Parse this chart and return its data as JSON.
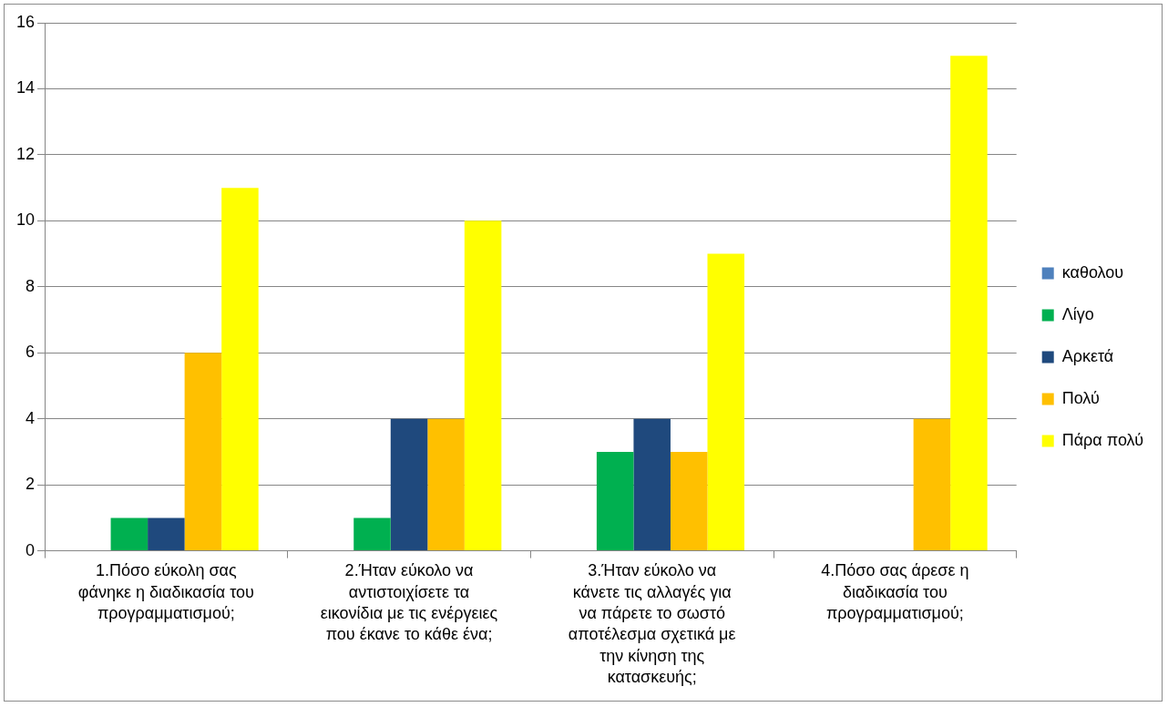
{
  "chart_data": {
    "type": "bar",
    "categories": [
      "1.Πόσο εύκολη σας φάνηκε η διαδικασία του προγραμματισμού;",
      "2.Ήταν εύκολο να αντιστοιχίσετε τα εικονίδια με τις ενέργειες που έκανε το κάθε ένα;",
      "3.Ήταν εύκολο να κάνετε τις αλλαγές για να πάρετε το σωστό αποτέλεσμα σχετικά με την κίνηση της κατασκευής;",
      "4.Πόσο σας άρεσε η διαδικασία του προγραμματισμού;"
    ],
    "series": [
      {
        "name": "καθολου",
        "color": "#4f81bd",
        "values": [
          0,
          0,
          0,
          0
        ]
      },
      {
        "name": "Λίγο",
        "color": "#00b050",
        "values": [
          1,
          1,
          3,
          0
        ]
      },
      {
        "name": "Αρκετά",
        "color": "#1f497d",
        "values": [
          1,
          4,
          4,
          0
        ]
      },
      {
        "name": "Πολύ",
        "color": "#ffc000",
        "values": [
          6,
          4,
          3,
          4
        ]
      },
      {
        "name": "Πάρα πολύ",
        "color": "#ffff00",
        "values": [
          11,
          10,
          9,
          15
        ]
      }
    ],
    "ylim": [
      0,
      16
    ],
    "yticks": [
      0,
      2,
      4,
      6,
      8,
      10,
      12,
      14,
      16
    ],
    "grid": "y",
    "legend": "right"
  }
}
